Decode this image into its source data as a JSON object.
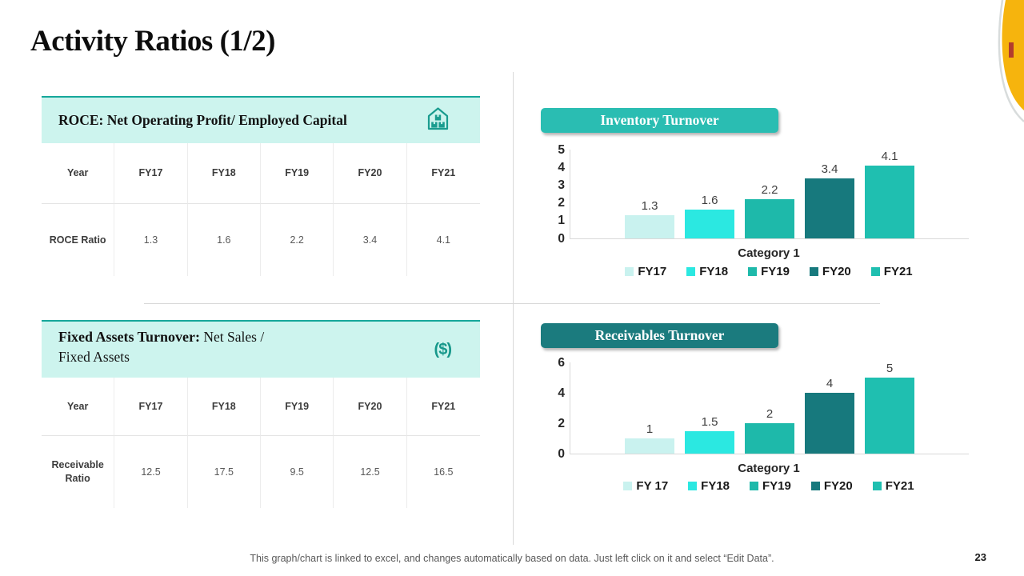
{
  "slide": {
    "title": "Activity Ratios (1/2)",
    "page_number": "23",
    "footer_note": "This graph/chart is linked to excel, and changes automatically based on data. Just left click on it and select “Edit Data”."
  },
  "colors": {
    "accent_teal": "#2ABDB2",
    "accent_dark_teal": "#1B7B7E",
    "header_mint": "#CDF4EE",
    "header_border_teal": "#15A79A",
    "icon_teal": "#1A9C8F",
    "divider_gray": "#D9D9D9",
    "corner_yellow": "#F6B40D"
  },
  "tables": [
    {
      "header": "ROCE: Net Operating Profit/ Employed Capital",
      "icon": "warehouse-icon",
      "columns": [
        "Year",
        "FY17",
        "FY18",
        "FY19",
        "FY20",
        "FY21"
      ],
      "row_label": "ROCE Ratio",
      "values": [
        "1.3",
        "1.6",
        "2.2",
        "3.4",
        "4.1"
      ]
    },
    {
      "header_bold": "Fixed Assets Turnover:",
      "header_rest": " Net Sales /",
      "header_line2": "Fixed Assets",
      "icon": "dollar-icon",
      "icon_glyph": "($)",
      "columns": [
        "Year",
        "FY17",
        "FY18",
        "FY19",
        "FY20",
        "FY21"
      ],
      "row_label": "Receivable Ratio",
      "values": [
        "12.5",
        "17.5",
        "9.5",
        "12.5",
        "16.5"
      ]
    }
  ],
  "chart_data": [
    {
      "type": "bar",
      "title": "Inventory Turnover",
      "categories": [
        "FY17",
        "FY18",
        "FY19",
        "FY20",
        "FY21"
      ],
      "values": [
        1.3,
        1.6,
        2.2,
        3.4,
        4.1
      ],
      "data_labels": [
        "1.3",
        "1.6",
        "2.2",
        "3.4",
        "4.1"
      ],
      "xlabel": "Category 1",
      "ylim": [
        0,
        5
      ],
      "yticks": [
        0,
        1,
        2,
        3,
        4,
        5
      ],
      "legend": [
        "FY17",
        "FY18",
        "FY19",
        "FY20",
        "FY21"
      ],
      "legend_position": "bottom",
      "grid": false,
      "series_colors": [
        "#C9F2EF",
        "#2BE8E1",
        "#1EB9AA",
        "#17797D",
        "#1FBFB0"
      ]
    },
    {
      "type": "bar",
      "title": "Receivables Turnover",
      "categories": [
        "FY 17",
        "FY18",
        "FY19",
        "FY20",
        "FY21"
      ],
      "values": [
        1,
        1.5,
        2,
        4,
        5
      ],
      "data_labels": [
        "1",
        "1.5",
        "2",
        "4",
        "5"
      ],
      "xlabel": "Category 1",
      "ylim": [
        0,
        6
      ],
      "yticks": [
        0,
        2,
        4,
        6
      ],
      "legend": [
        "FY 17",
        "FY18",
        "FY19",
        "FY20",
        "FY21"
      ],
      "legend_position": "bottom",
      "grid": false,
      "series_colors": [
        "#C9F2EF",
        "#2BE8E1",
        "#1EB9AA",
        "#17797D",
        "#1FBFB0"
      ]
    }
  ]
}
